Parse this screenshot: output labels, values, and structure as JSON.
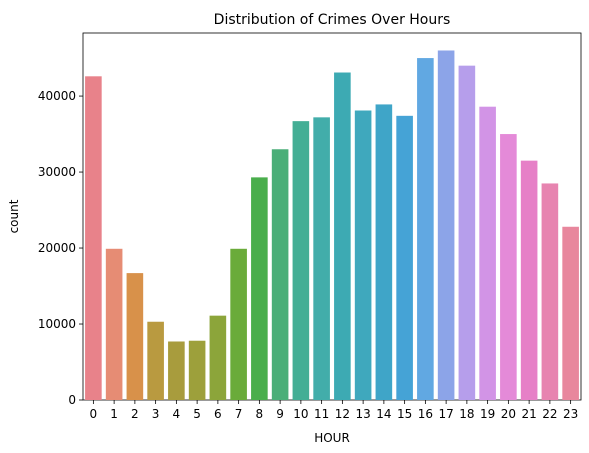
{
  "chart_data": {
    "type": "bar",
    "title": "Distribution of Crimes Over Hours",
    "xlabel": "HOUR",
    "ylabel": "count",
    "categories": [
      "0",
      "1",
      "2",
      "3",
      "4",
      "5",
      "6",
      "7",
      "8",
      "9",
      "10",
      "11",
      "12",
      "13",
      "14",
      "15",
      "16",
      "17",
      "18",
      "19",
      "20",
      "21",
      "22",
      "23"
    ],
    "values": [
      42600,
      19900,
      16700,
      10300,
      7700,
      7800,
      11100,
      19900,
      29300,
      33000,
      36700,
      37200,
      43100,
      38100,
      38900,
      37400,
      45000,
      46000,
      44000,
      38600,
      35000,
      31500,
      28500,
      22800
    ],
    "colors": [
      "#e8828a",
      "#e68c74",
      "#d8914a",
      "#b99a40",
      "#a89c3d",
      "#9da03b",
      "#8ca53a",
      "#6aab3a",
      "#4aae4c",
      "#4aae78",
      "#43ae95",
      "#42adaa",
      "#3daab3",
      "#3fa8bd",
      "#3fa5c8",
      "#45a3d6",
      "#61a8e2",
      "#8ca4e8",
      "#b69eeb",
      "#d294e6",
      "#e48ad8",
      "#e680c7",
      "#e784b0",
      "#e8879d"
    ],
    "yticks": [
      0,
      10000,
      20000,
      30000,
      40000
    ],
    "ylim": [
      0,
      48300
    ],
    "grid": false,
    "legend": "none"
  }
}
